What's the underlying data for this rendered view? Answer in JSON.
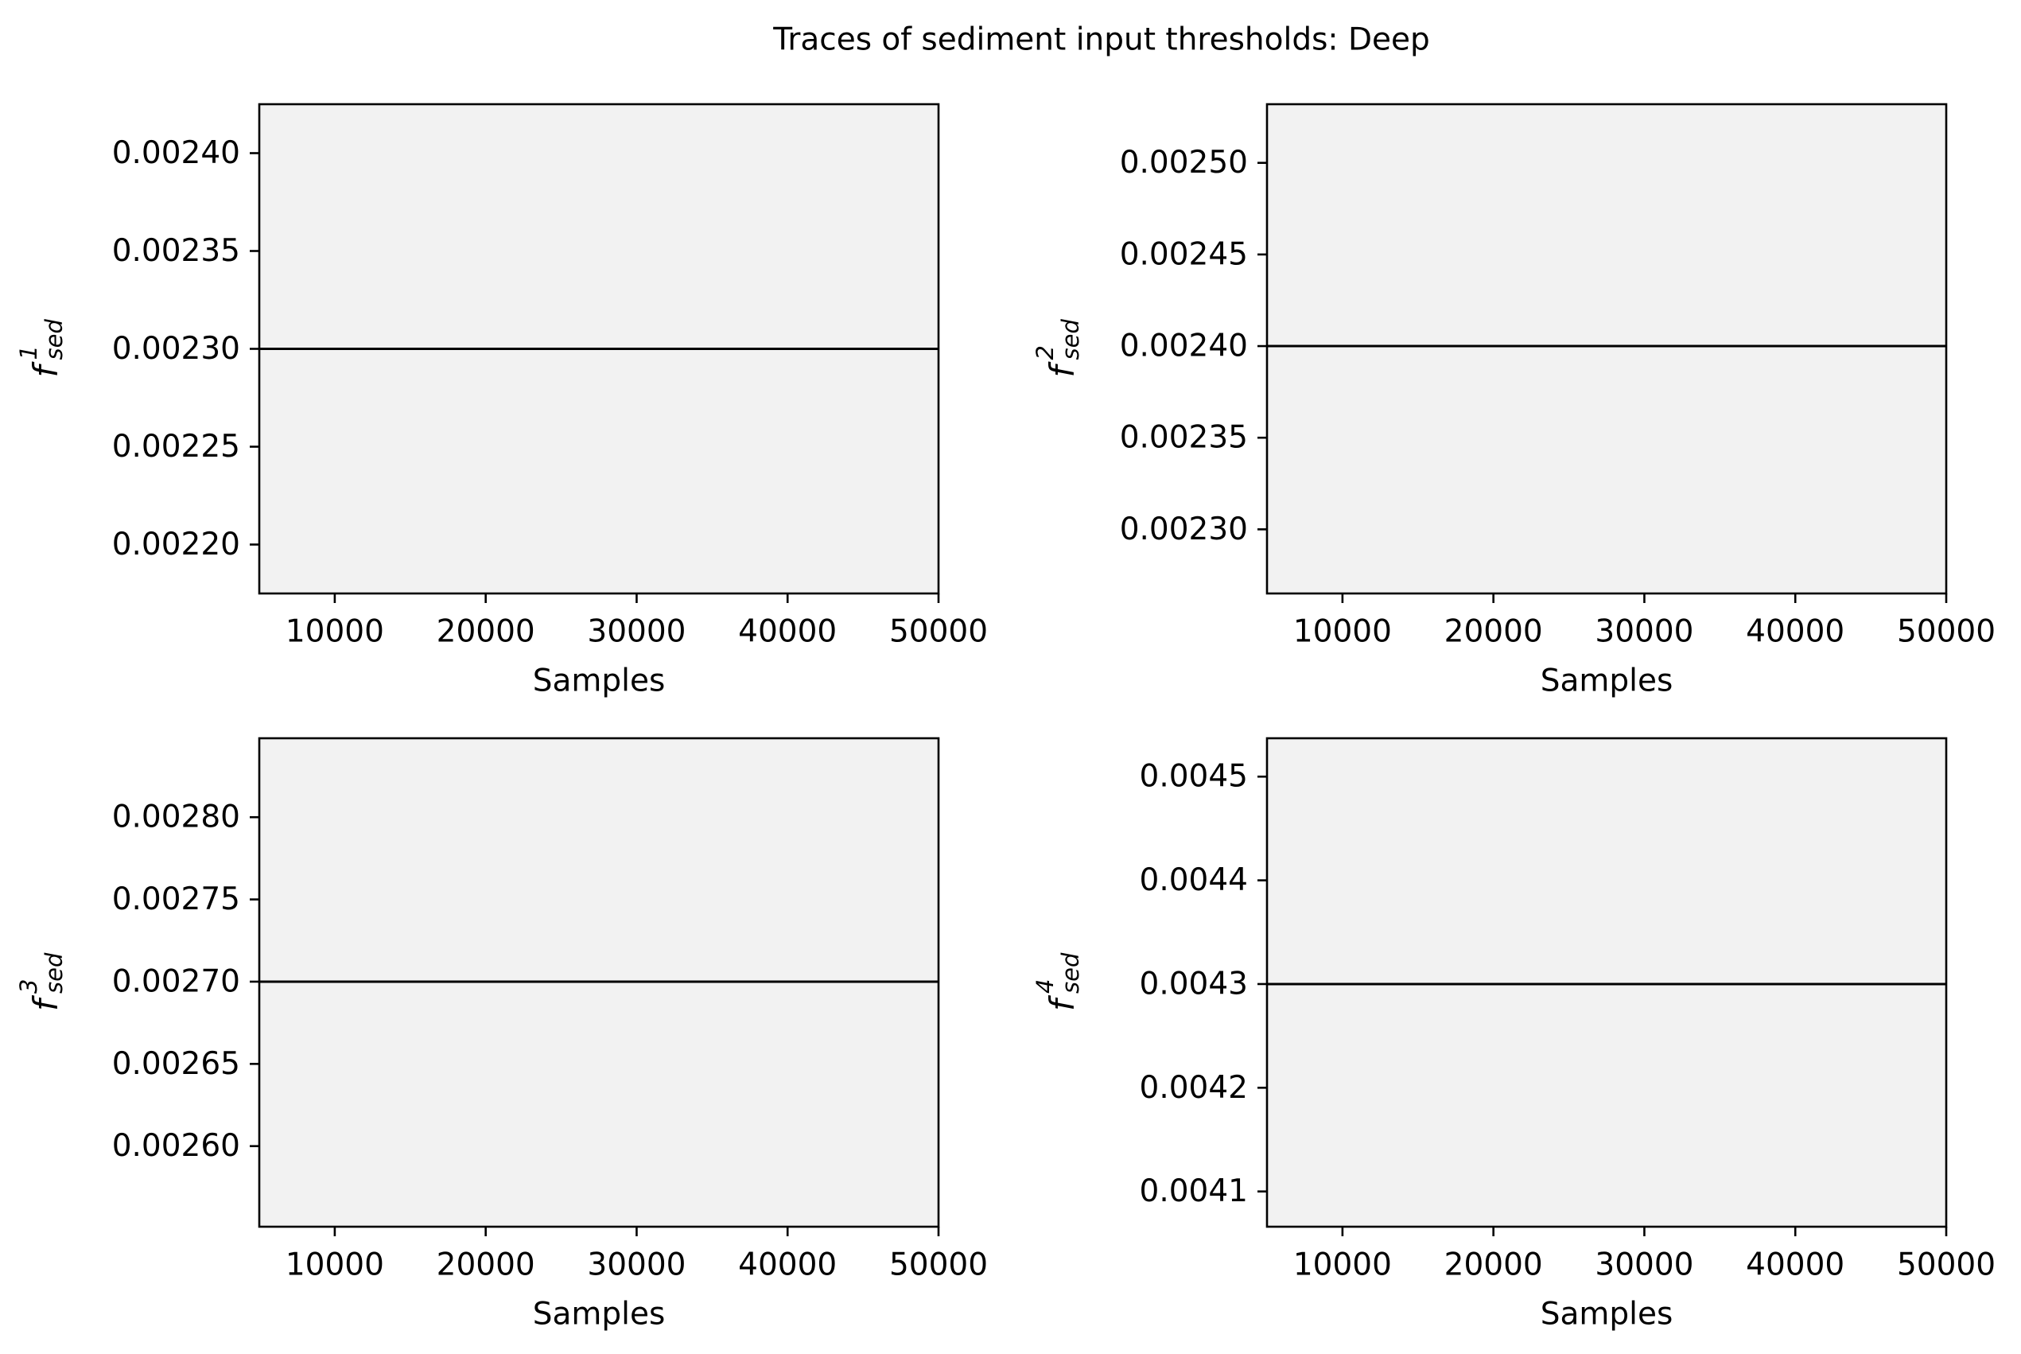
{
  "figure": {
    "title": "Traces of sediment input thresholds: Deep",
    "background": "#ffffff"
  },
  "style": {
    "plot_background": "#f2f2f2",
    "line_color": "#000000",
    "axes_color": "#000000"
  },
  "chart_data": [
    {
      "type": "line",
      "xlabel": "Samples",
      "ylabel": {
        "base": "f",
        "superscript": "1",
        "subscript": "sed"
      },
      "xlim": [
        5000,
        50000
      ],
      "ylim": [
        0.002175,
        0.002425
      ],
      "xticks": [
        10000,
        20000,
        30000,
        40000,
        50000
      ],
      "yticks": [
        0.0022,
        0.00225,
        0.0023,
        0.00235,
        0.0024
      ],
      "ytick_labels": [
        "0.00220",
        "0.00225",
        "0.00230",
        "0.00235",
        "0.00240"
      ],
      "series": [
        {
          "x": [
            5000,
            50000
          ],
          "y": [
            0.0023,
            0.0023
          ]
        }
      ],
      "grid": false
    },
    {
      "type": "line",
      "xlabel": "Samples",
      "ylabel": {
        "base": "f",
        "superscript": "2",
        "subscript": "sed"
      },
      "xlim": [
        5000,
        50000
      ],
      "ylim": [
        0.002265,
        0.002532
      ],
      "xticks": [
        10000,
        20000,
        30000,
        40000,
        50000
      ],
      "yticks": [
        0.0023,
        0.00235,
        0.0024,
        0.00245,
        0.0025
      ],
      "ytick_labels": [
        "0.00230",
        "0.00235",
        "0.00240",
        "0.00245",
        "0.00250"
      ],
      "series": [
        {
          "x": [
            5000,
            50000
          ],
          "y": [
            0.0024,
            0.0024
          ]
        }
      ],
      "grid": false
    },
    {
      "type": "line",
      "xlabel": "Samples",
      "ylabel": {
        "base": "f",
        "superscript": "3",
        "subscript": "sed"
      },
      "xlim": [
        5000,
        50000
      ],
      "ylim": [
        0.002551,
        0.002848
      ],
      "xticks": [
        10000,
        20000,
        30000,
        40000,
        50000
      ],
      "yticks": [
        0.0026,
        0.00265,
        0.0027,
        0.00275,
        0.0028
      ],
      "ytick_labels": [
        "0.00260",
        "0.00265",
        "0.00270",
        "0.00275",
        "0.00280"
      ],
      "series": [
        {
          "x": [
            5000,
            50000
          ],
          "y": [
            0.0027,
            0.0027
          ]
        }
      ],
      "grid": false
    },
    {
      "type": "line",
      "xlabel": "Samples",
      "ylabel": {
        "base": "f",
        "superscript": "4",
        "subscript": "sed"
      },
      "xlim": [
        5000,
        50000
      ],
      "ylim": [
        0.004066,
        0.004537
      ],
      "xticks": [
        10000,
        20000,
        30000,
        40000,
        50000
      ],
      "yticks": [
        0.0041,
        0.0042,
        0.0043,
        0.0044,
        0.0045
      ],
      "ytick_labels": [
        "0.0041",
        "0.0042",
        "0.0043",
        "0.0044",
        "0.0045"
      ],
      "series": [
        {
          "x": [
            5000,
            50000
          ],
          "y": [
            0.0043,
            0.0043
          ]
        }
      ],
      "grid": false
    }
  ]
}
